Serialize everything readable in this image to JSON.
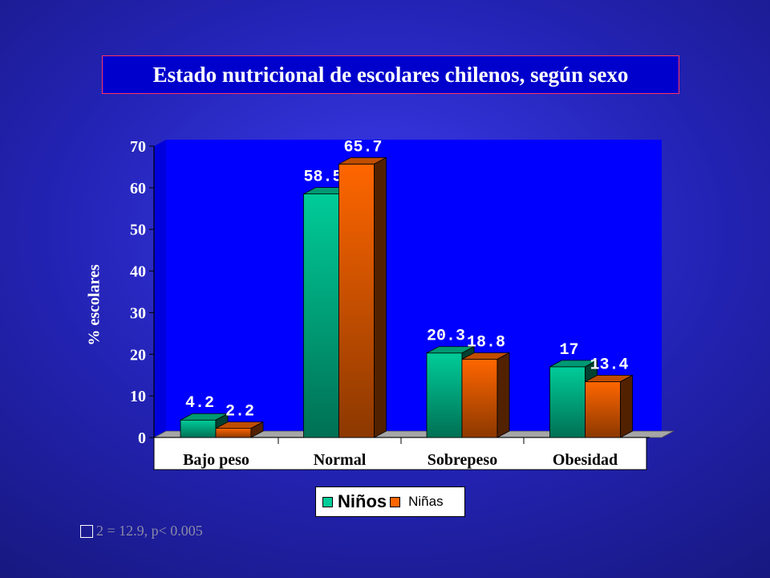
{
  "title": "Estado nutricional de escolares chilenos, según sexo",
  "stat_note": "2 = 12.9,  p< 0.005",
  "colors": {
    "ninos": "#00cc99",
    "ninas": "#ff6600",
    "plot_bg": "#0000ff",
    "floor": "#a6a6a6"
  },
  "chart_data": {
    "type": "bar",
    "title": "Estado nutricional de escolares chilenos, según sexo",
    "xlabel": "",
    "ylabel": "% escolares",
    "ylim": [
      0,
      70
    ],
    "yticks": [
      "0",
      "10",
      "20",
      "30",
      "40",
      "50",
      "60",
      "70"
    ],
    "categories": [
      "Bajo peso",
      "Normal",
      "Sobrepeso",
      "Obesidad"
    ],
    "series": [
      {
        "name": "Niños",
        "values": [
          4.2,
          58.5,
          20.3,
          17
        ],
        "labels": [
          "4.2",
          "58.5",
          "20.3",
          "17"
        ]
      },
      {
        "name": "Niñas",
        "values": [
          2.2,
          65.7,
          18.8,
          13.4
        ],
        "labels": [
          "2.2",
          "65.7",
          "18.8",
          "13.4"
        ]
      }
    ],
    "legend": "bottom",
    "grid": false,
    "three_d": true
  }
}
